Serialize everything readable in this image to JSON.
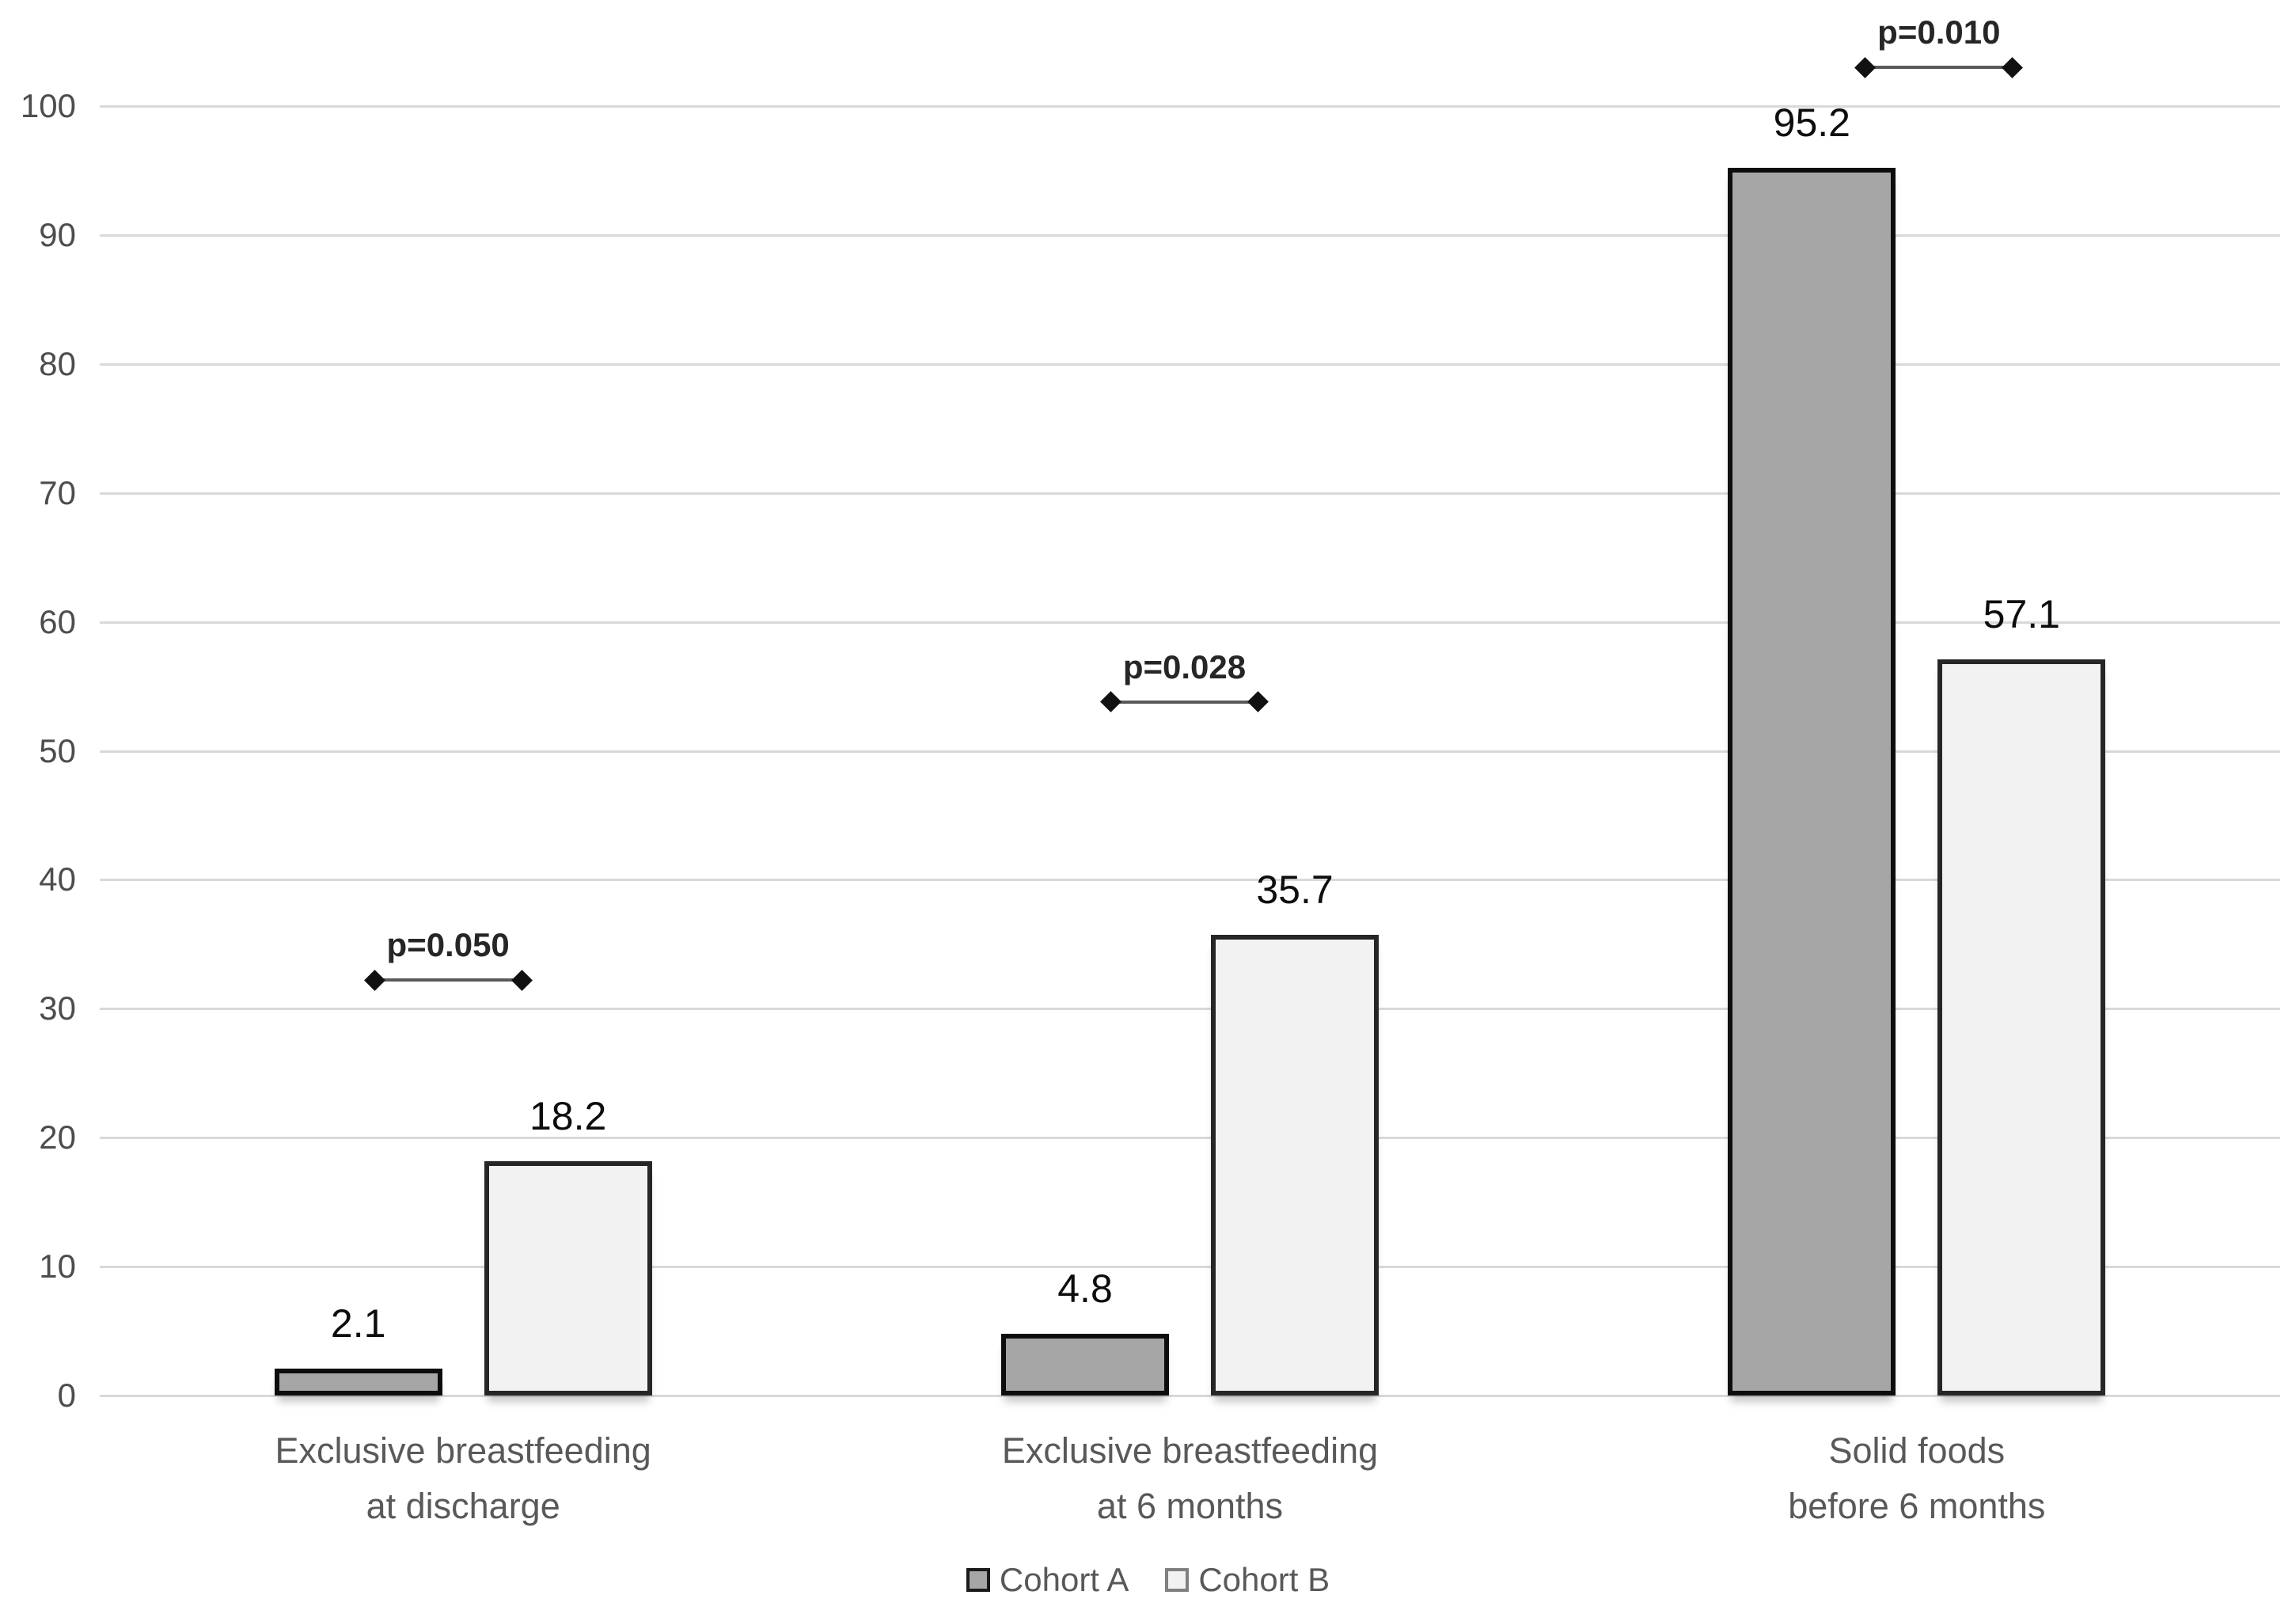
{
  "chart_data": {
    "type": "bar",
    "title": "",
    "xlabel": "",
    "ylabel": "",
    "categories": [
      [
        "Exclusive breastfeeding",
        "at discharge"
      ],
      [
        "Exclusive breastfeeding",
        "at 6 months"
      ],
      [
        "Solid foods",
        "before 6 months"
      ]
    ],
    "series": [
      {
        "name": "Cohort A",
        "values": [
          2.1,
          4.8,
          95.2
        ],
        "data_labels": [
          "2.1",
          "4.8",
          "95.2"
        ],
        "fill": "#a6a6a6",
        "border": "#0d0d0d",
        "legend_border": "#1a1a1a"
      },
      {
        "name": "Cohort B",
        "values": [
          18.2,
          35.7,
          57.1
        ],
        "data_labels": [
          "18.2",
          "35.7",
          "57.1"
        ],
        "fill": "#f2f2f2",
        "border": "#262626",
        "legend_border": "#808080"
      }
    ],
    "annotations": [
      {
        "label": "p=0.050",
        "group": 0,
        "line_y": 32.2
      },
      {
        "label": "p=0.028",
        "group": 1,
        "line_y": 53.8
      },
      {
        "label": "p=0.010",
        "group": 2,
        "line_y": 103.0
      }
    ],
    "y_axis": {
      "min": 0,
      "max": 100,
      "tick_step": 10,
      "ticks": [
        0,
        10,
        20,
        30,
        40,
        50,
        60,
        70,
        80,
        90,
        100
      ]
    },
    "ylim": [
      0,
      100
    ],
    "grid": true,
    "legend": {
      "position": "bottom"
    },
    "colors": {
      "background": "#ffffff",
      "gridline": "#d9d9d9",
      "tick_label": "#4d4d4d",
      "category_label": "#595959",
      "data_label": "#0d0d0d",
      "annotation_text": "#262626",
      "annotation_line": "#595959",
      "annotation_diamond": "#111111",
      "legend_label": "#595959"
    }
  }
}
